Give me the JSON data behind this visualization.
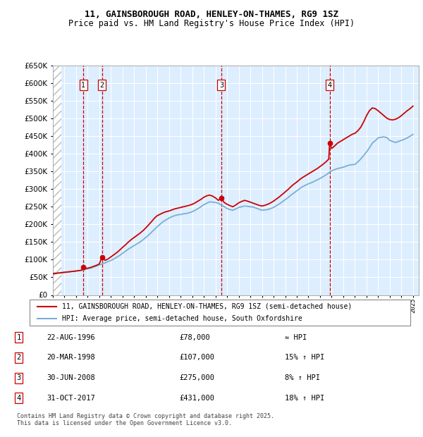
{
  "title": "11, GAINSBOROUGH ROAD, HENLEY-ON-THAMES, RG9 1SZ",
  "subtitle": "Price paid vs. HM Land Registry's House Price Index (HPI)",
  "legend_line1": "11, GAINSBOROUGH ROAD, HENLEY-ON-THAMES, RG9 1SZ (semi-detached house)",
  "legend_line2": "HPI: Average price, semi-detached house, South Oxfordshire",
  "footer": "Contains HM Land Registry data © Crown copyright and database right 2025.\nThis data is licensed under the Open Government Licence v3.0.",
  "sales": [
    {
      "num": 1,
      "date": "22-AUG-1996",
      "price": 78000,
      "note": "≈ HPI",
      "x": 1996.64
    },
    {
      "num": 2,
      "date": "20-MAR-1998",
      "price": 107000,
      "note": "15% ↑ HPI",
      "x": 1998.22
    },
    {
      "num": 3,
      "date": "30-JUN-2008",
      "price": 275000,
      "note": "8% ↑ HPI",
      "x": 2008.5
    },
    {
      "num": 4,
      "date": "31-OCT-2017",
      "price": 431000,
      "note": "18% ↑ HPI",
      "x": 2017.83
    }
  ],
  "hpi_x": [
    1994,
    1994.25,
    1994.5,
    1994.75,
    1995,
    1995.25,
    1995.5,
    1995.75,
    1996,
    1996.25,
    1996.5,
    1996.75,
    1997,
    1997.25,
    1997.5,
    1997.75,
    1998,
    1998.25,
    1998.5,
    1998.75,
    1999,
    1999.25,
    1999.5,
    1999.75,
    2000,
    2000.25,
    2000.5,
    2000.75,
    2001,
    2001.25,
    2001.5,
    2001.75,
    2002,
    2002.25,
    2002.5,
    2002.75,
    2003,
    2003.25,
    2003.5,
    2003.75,
    2004,
    2004.25,
    2004.5,
    2004.75,
    2005,
    2005.25,
    2005.5,
    2005.75,
    2006,
    2006.25,
    2006.5,
    2006.75,
    2007,
    2007.25,
    2007.5,
    2007.75,
    2008,
    2008.25,
    2008.5,
    2008.75,
    2009,
    2009.25,
    2009.5,
    2009.75,
    2010,
    2010.25,
    2010.5,
    2010.75,
    2011,
    2011.25,
    2011.5,
    2011.75,
    2012,
    2012.25,
    2012.5,
    2012.75,
    2013,
    2013.25,
    2013.5,
    2013.75,
    2014,
    2014.25,
    2014.5,
    2014.75,
    2015,
    2015.25,
    2015.5,
    2015.75,
    2016,
    2016.25,
    2016.5,
    2016.75,
    2017,
    2017.25,
    2017.5,
    2017.75,
    2018,
    2018.25,
    2018.5,
    2018.75,
    2019,
    2019.25,
    2019.5,
    2019.75,
    2020,
    2020.25,
    2020.5,
    2020.75,
    2021,
    2021.25,
    2021.5,
    2021.75,
    2022,
    2022.25,
    2022.5,
    2022.75,
    2023,
    2023.25,
    2023.5,
    2023.75,
    2024,
    2024.25,
    2024.5,
    2024.75,
    2025
  ],
  "hpi_y": [
    62000,
    62500,
    63000,
    64000,
    65000,
    65500,
    66000,
    67000,
    68000,
    69000,
    70000,
    72000,
    74000,
    76000,
    79000,
    82000,
    85000,
    88000,
    91000,
    94500,
    98000,
    102000,
    107000,
    112000,
    118000,
    124000,
    130000,
    135000,
    140000,
    145000,
    150000,
    156000,
    163000,
    170000,
    178000,
    186000,
    194000,
    201000,
    208000,
    213000,
    218000,
    222000,
    225000,
    227000,
    228000,
    230000,
    231000,
    233000,
    236000,
    240000,
    245000,
    250000,
    256000,
    260000,
    264000,
    263000,
    262000,
    260000,
    255000,
    250000,
    245000,
    242000,
    240000,
    244000,
    248000,
    250000,
    252000,
    251000,
    250000,
    249000,
    246000,
    243000,
    240000,
    241000,
    242000,
    245000,
    248000,
    253000,
    258000,
    264000,
    270000,
    276000,
    283000,
    289000,
    295000,
    301000,
    307000,
    311000,
    315000,
    318000,
    322000,
    326000,
    330000,
    335000,
    340000,
    346000,
    352000,
    355000,
    358000,
    360000,
    362000,
    365000,
    368000,
    369000,
    370000,
    377000,
    385000,
    395000,
    405000,
    417000,
    430000,
    437000,
    445000,
    447000,
    448000,
    446000,
    438000,
    435000,
    432000,
    435000,
    438000,
    441000,
    445000,
    450000,
    455000
  ],
  "price_x": [
    1994,
    1994.25,
    1994.5,
    1994.75,
    1995,
    1995.25,
    1995.5,
    1995.75,
    1996,
    1996.25,
    1996.5,
    1996.64,
    1996.75,
    1997,
    1997.25,
    1997.5,
    1997.75,
    1998,
    1998.22,
    1998.5,
    1998.75,
    1999,
    1999.25,
    1999.5,
    1999.75,
    2000,
    2000.25,
    2000.5,
    2000.75,
    2001,
    2001.25,
    2001.5,
    2001.75,
    2002,
    2002.25,
    2002.5,
    2002.75,
    2003,
    2003.25,
    2003.5,
    2003.75,
    2004,
    2004.25,
    2004.5,
    2004.75,
    2005,
    2005.25,
    2005.5,
    2005.75,
    2006,
    2006.25,
    2006.5,
    2006.75,
    2007,
    2007.25,
    2007.5,
    2007.75,
    2008,
    2008.25,
    2008.5,
    2008.75,
    2009,
    2009.25,
    2009.5,
    2009.75,
    2010,
    2010.25,
    2010.5,
    2010.75,
    2011,
    2011.25,
    2011.5,
    2011.75,
    2012,
    2012.25,
    2012.5,
    2012.75,
    2013,
    2013.25,
    2013.5,
    2013.75,
    2014,
    2014.25,
    2014.5,
    2014.75,
    2015,
    2015.25,
    2015.5,
    2015.75,
    2016,
    2016.25,
    2016.5,
    2016.75,
    2017,
    2017.25,
    2017.5,
    2017.75,
    2017.83,
    2018,
    2018.25,
    2018.5,
    2018.75,
    2019,
    2019.25,
    2019.5,
    2019.75,
    2020,
    2020.25,
    2020.5,
    2020.75,
    2021,
    2021.25,
    2021.5,
    2021.75,
    2022,
    2022.25,
    2022.5,
    2022.75,
    2023,
    2023.25,
    2023.5,
    2023.75,
    2024,
    2024.25,
    2024.5,
    2024.75,
    2025
  ],
  "price_y": [
    60000,
    61000,
    62000,
    63000,
    64000,
    65000,
    66000,
    67000,
    68000,
    69000,
    70500,
    78000,
    75000,
    76000,
    78000,
    81000,
    84000,
    88000,
    107000,
    98000,
    102000,
    108000,
    114000,
    120000,
    127000,
    135000,
    142000,
    150000,
    157000,
    163000,
    169000,
    175000,
    182000,
    190000,
    199000,
    208000,
    218000,
    225000,
    229000,
    233000,
    236000,
    238000,
    241000,
    244000,
    246000,
    248000,
    250000,
    252000,
    254000,
    257000,
    261000,
    266000,
    271000,
    277000,
    281000,
    283000,
    280000,
    275000,
    268000,
    275000,
    262000,
    257000,
    253000,
    250000,
    255000,
    261000,
    265000,
    268000,
    266000,
    263000,
    260000,
    257000,
    254000,
    252000,
    254000,
    257000,
    261000,
    266000,
    272000,
    278000,
    285000,
    292000,
    299000,
    307000,
    314000,
    320000,
    327000,
    333000,
    338000,
    343000,
    348000,
    353000,
    358000,
    364000,
    370000,
    377000,
    385000,
    431000,
    415000,
    422000,
    430000,
    435000,
    440000,
    445000,
    450000,
    455000,
    458000,
    465000,
    475000,
    490000,
    508000,
    522000,
    530000,
    528000,
    522000,
    515000,
    508000,
    501000,
    497000,
    496000,
    498000,
    502000,
    508000,
    515000,
    522000,
    528000,
    535000
  ],
  "ylim": [
    0,
    650000
  ],
  "yticks": [
    0,
    50000,
    100000,
    150000,
    200000,
    250000,
    300000,
    350000,
    400000,
    450000,
    500000,
    550000,
    600000,
    650000
  ],
  "xlim": [
    1994,
    2025.5
  ],
  "xticks": [
    1994,
    1995,
    1996,
    1997,
    1998,
    1999,
    2000,
    2001,
    2002,
    2003,
    2004,
    2005,
    2006,
    2007,
    2008,
    2009,
    2010,
    2011,
    2012,
    2013,
    2014,
    2015,
    2016,
    2017,
    2018,
    2019,
    2020,
    2021,
    2022,
    2023,
    2024,
    2025
  ],
  "red_color": "#cc0000",
  "blue_color": "#7aafd4",
  "hatch_color": "#bbbbbb",
  "plot_bg": "#ddeeff",
  "grid_color": "#ffffff",
  "vline_color": "#cc0000",
  "marker_box_color": "#cc0000",
  "title_fontsize": 9,
  "subtitle_fontsize": 8.5
}
